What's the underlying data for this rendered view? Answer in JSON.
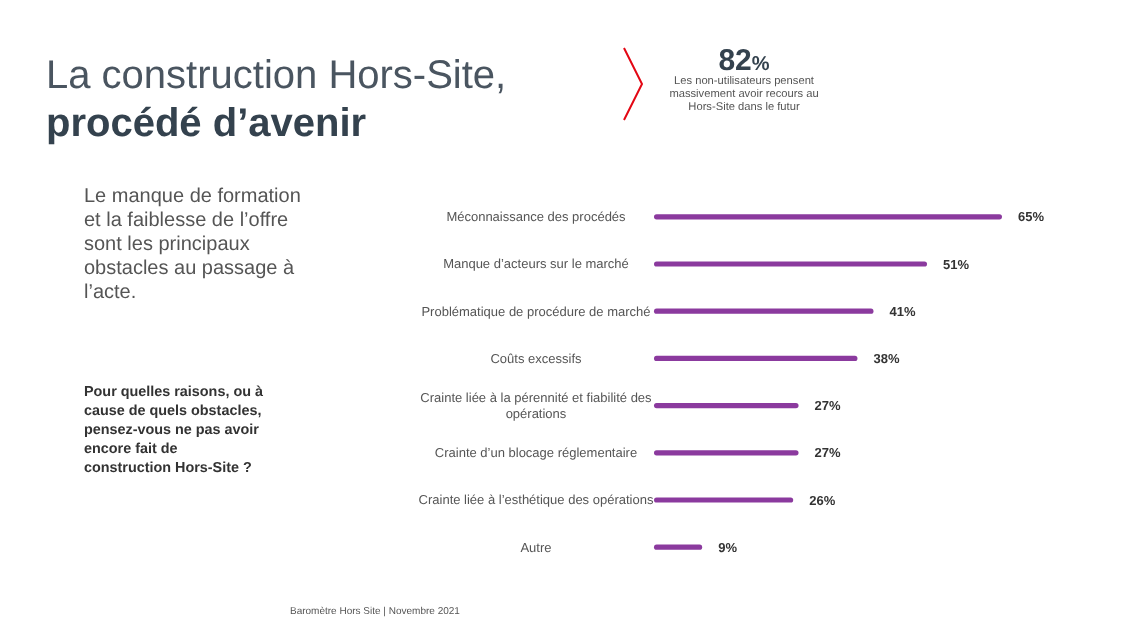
{
  "chart_data": {
    "type": "bar",
    "orientation": "horizontal",
    "title": "La construction Hors-Site, procédé d’avenir",
    "categories": [
      "Méconnaissance des procédés",
      "Manque d’acteurs sur le marché",
      "Problématique de procédure de marché",
      "Coûts excessifs",
      "Crainte liée à la pérennité et fiabilité des opérations",
      "Crainte d’un blocage réglementaire",
      "Crainte liée à l’esthétique des opérations",
      "Autre"
    ],
    "values": [
      65,
      51,
      41,
      38,
      27,
      27,
      26,
      9
    ],
    "value_labels": [
      "65%",
      "51%",
      "41%",
      "38%",
      "27%",
      "27%",
      "26%",
      "9%"
    ],
    "color": "#8b3a9e",
    "annotations": [
      "82%",
      "Les non-utilisateurs pensent massivement avoir recours au Hors-Site dans le futur",
      "Le manque de formation et la faiblesse de l’offre sont les principaux obstacles au passage à l’acte.",
      "Pour quelles raisons, ou à cause de quels obstacles, pensez-vous ne pas avoir encore fait de construction Hors-Site ?",
      "Baromètre Hors Site | Novembre 2021"
    ]
  }
}
